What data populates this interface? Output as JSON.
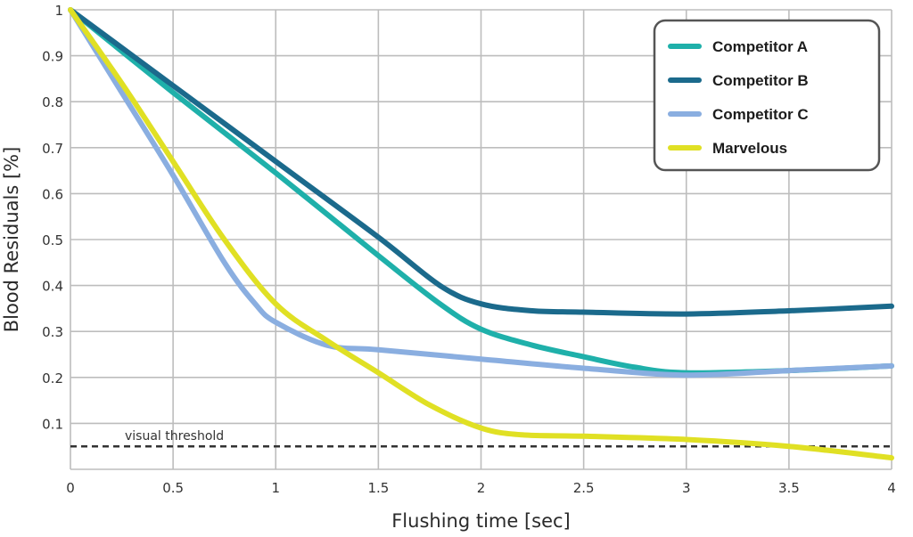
{
  "chart_data": {
    "type": "line",
    "title": "",
    "xlabel": "Flushing time [sec]",
    "ylabel": "Blood Residuals [%]",
    "xlim": [
      0,
      4
    ],
    "ylim": [
      0,
      1
    ],
    "grid": true,
    "legend_position": "top-right",
    "xticks": [
      0,
      0.5,
      1,
      1.5,
      2,
      2.5,
      3,
      3.5,
      4
    ],
    "xtick_labels": [
      "0",
      "0.5",
      "1",
      "1.5",
      "2",
      "2.5",
      "3",
      "3.5",
      "4"
    ],
    "yticks": [
      0.1,
      0.2,
      0.3,
      0.4,
      0.5,
      0.6,
      0.7,
      0.8,
      0.9,
      1
    ],
    "ytick_labels": [
      "0.1",
      "0.2",
      "0.3",
      "0.4",
      "0.5",
      "0.6",
      "0.7",
      "0.8",
      "0.9",
      "1"
    ],
    "series": [
      {
        "name": "Competitor A",
        "color": "#1fb0aa",
        "x": [
          0,
          0.5,
          1,
          1.5,
          1.8,
          2,
          2.25,
          2.5,
          2.75,
          3,
          3.5,
          4
        ],
        "values": [
          1,
          0.82,
          0.645,
          0.465,
          0.36,
          0.305,
          0.27,
          0.245,
          0.222,
          0.21,
          0.215,
          0.225
        ]
      },
      {
        "name": "Competitor B",
        "color": "#1b6a8c",
        "x": [
          0,
          0.5,
          1,
          1.5,
          1.8,
          2,
          2.25,
          2.5,
          3,
          3.5,
          4
        ],
        "values": [
          1,
          0.835,
          0.67,
          0.505,
          0.4,
          0.36,
          0.345,
          0.342,
          0.338,
          0.345,
          0.355
        ]
      },
      {
        "name": "Competitor C",
        "color": "#8aaee0",
        "x": [
          0,
          0.25,
          0.5,
          0.75,
          0.9,
          1,
          1.25,
          1.5,
          2,
          2.5,
          3,
          3.5,
          4
        ],
        "values": [
          1,
          0.82,
          0.64,
          0.45,
          0.36,
          0.32,
          0.27,
          0.26,
          0.24,
          0.22,
          0.205,
          0.215,
          0.225
        ]
      },
      {
        "name": "Marvelous",
        "color": "#e0e024",
        "x": [
          0,
          0.25,
          0.5,
          0.75,
          1,
          1.25,
          1.5,
          1.75,
          2,
          2.2,
          2.5,
          3,
          3.5,
          4
        ],
        "values": [
          1,
          0.84,
          0.67,
          0.5,
          0.36,
          0.28,
          0.21,
          0.14,
          0.09,
          0.075,
          0.072,
          0.065,
          0.05,
          0.025
        ]
      }
    ],
    "threshold": {
      "value": 0.05,
      "label": "visual threshold",
      "style": "dashed",
      "color": "#333333"
    }
  }
}
